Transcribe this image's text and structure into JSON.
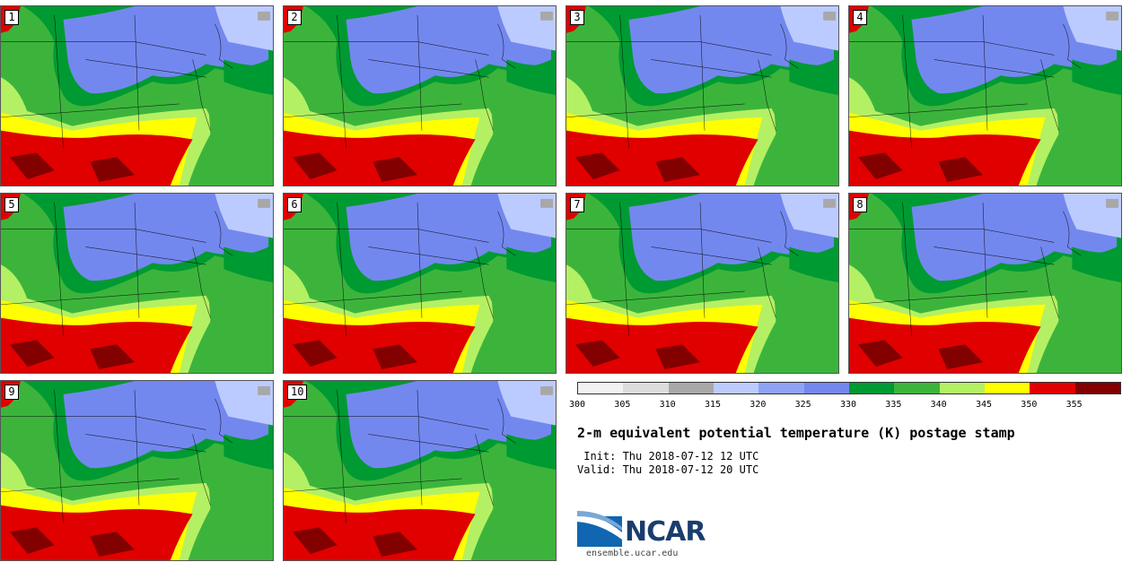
{
  "panels": [
    {
      "label": "1"
    },
    {
      "label": "2"
    },
    {
      "label": "3"
    },
    {
      "label": "4"
    },
    {
      "label": "5"
    },
    {
      "label": "6"
    },
    {
      "label": "7"
    },
    {
      "label": "8"
    },
    {
      "label": "9"
    },
    {
      "label": "10"
    }
  ],
  "colorbar": {
    "colors": [
      "#f2f2f2",
      "#dcdcdc",
      "#a8a8a8",
      "#bccbff",
      "#8ea3f5",
      "#7388ee",
      "#009a32",
      "#3cb43c",
      "#b4f064",
      "#ffff00",
      "#e00000",
      "#820000"
    ],
    "ticks": [
      "300",
      "305",
      "310",
      "315",
      "320",
      "325",
      "330",
      "335",
      "340",
      "345",
      "350",
      "355"
    ]
  },
  "title": "2-m equivalent potential temperature (K) postage stamp",
  "init": " Init: Thu 2018-07-12 12 UTC",
  "valid": "Valid: Thu 2018-07-12 20 UTC",
  "logo": {
    "brand": "NCAR",
    "url": "ensemble.ucar.edu"
  }
}
